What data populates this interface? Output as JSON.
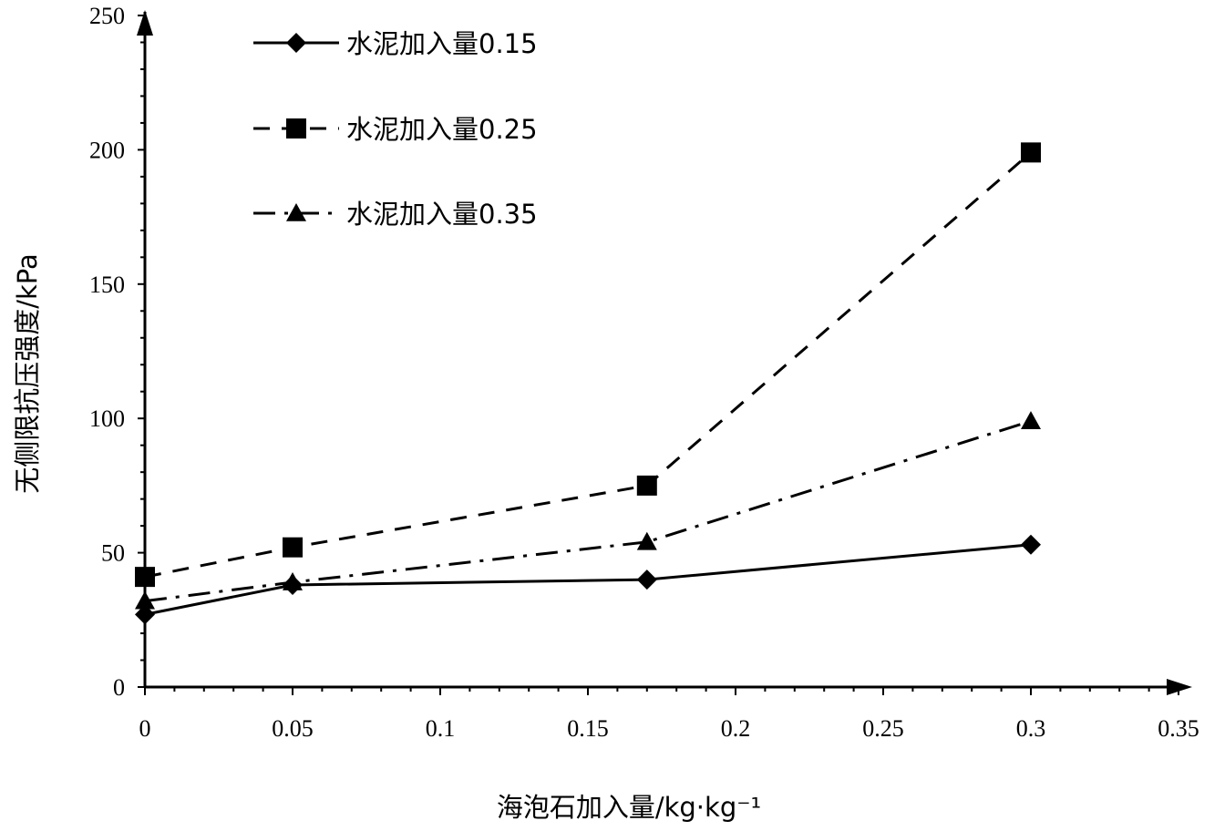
{
  "chart_data": {
    "type": "line",
    "xlabel": "海泡石加入量/kg·kg⁻¹",
    "ylabel": "无侧限抗压强度/kPa",
    "xlim": [
      0,
      0.35
    ],
    "ylim": [
      0,
      250
    ],
    "xticks": [
      "0",
      "0.05",
      "0.1",
      "0.15",
      "0.2",
      "0.25",
      "0.3",
      "0.35"
    ],
    "yticks": [
      "0",
      "50",
      "100",
      "150",
      "200",
      "250"
    ],
    "x": [
      0,
      0.05,
      0.17,
      0.3
    ],
    "legend_position": "top-left",
    "grid": false,
    "series": [
      {
        "name": "水泥加入量0.15",
        "values": [
          27,
          38,
          40,
          53
        ],
        "marker": "diamond",
        "line_style": "solid"
      },
      {
        "name": "水泥加入量0.25",
        "values": [
          41,
          52,
          75,
          199
        ],
        "marker": "square",
        "line_style": "dashed"
      },
      {
        "name": "水泥加入量0.35",
        "values": [
          32,
          39,
          54,
          99
        ],
        "marker": "triangle",
        "line_style": "dash-dot"
      }
    ]
  }
}
